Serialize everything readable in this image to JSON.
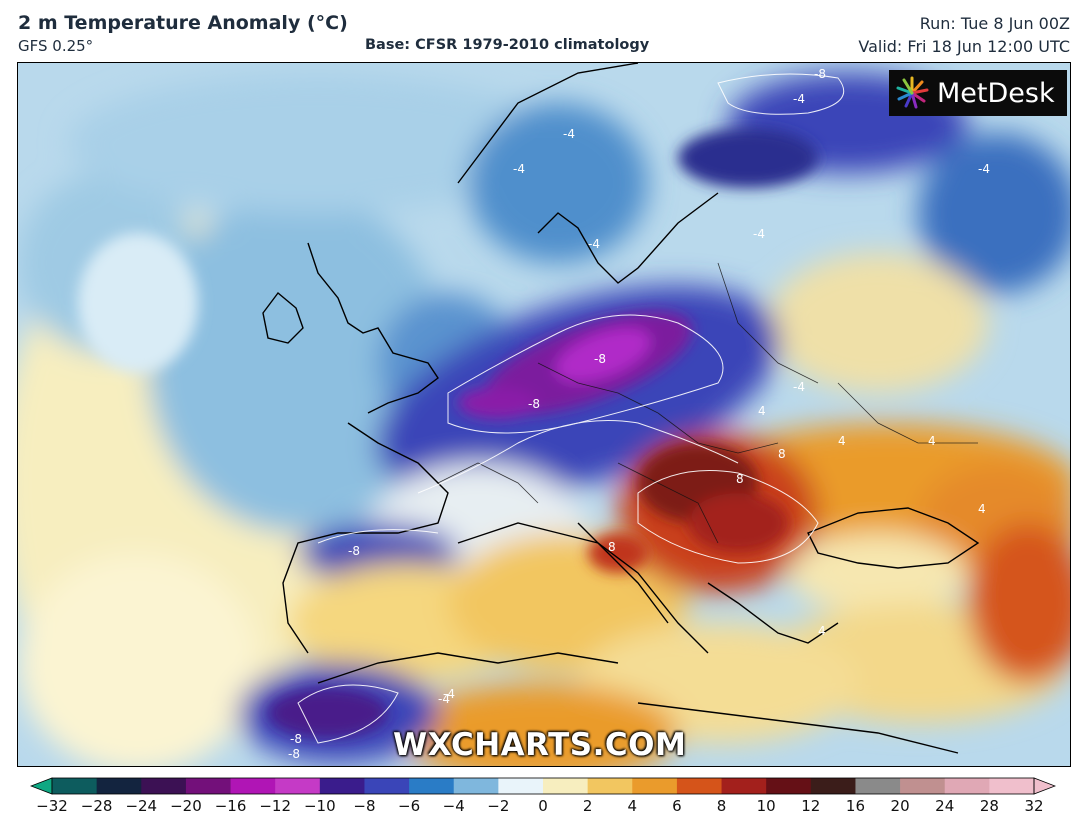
{
  "header": {
    "title": "2 m Temperature Anomaly (°C)",
    "model": "GFS 0.25°",
    "base": "Base: CFSR 1979-2010 climatology",
    "run": "Run: Tue 8 Jun 00Z",
    "valid": "Valid: Fri 18 Jun 12:00 UTC"
  },
  "logo": {
    "text": "MetDesk",
    "icon": "starburst-logo-icon"
  },
  "watermark": "WXCHARTS.COM",
  "map": {
    "contour_labels": [
      "-8",
      "-8",
      "-8",
      "-8",
      "-8",
      "-4",
      "-4",
      "-4",
      "-4",
      "-4",
      "-4",
      "-4",
      "-4",
      "4",
      "4",
      "4",
      "4",
      "4",
      "8",
      "8",
      "8",
      "-8",
      "-4"
    ]
  },
  "colorbar": {
    "ticks": [
      "−32",
      "−28",
      "−24",
      "−20",
      "−16",
      "−12",
      "−10",
      "−8",
      "−6",
      "−4",
      "−2",
      "0",
      "2",
      "4",
      "6",
      "8",
      "10",
      "12",
      "16",
      "20",
      "24",
      "28",
      "32"
    ],
    "colors": [
      "#0fa883",
      "#0d5c5e",
      "#13243f",
      "#3c1154",
      "#73107a",
      "#b015b5",
      "#c53ac6",
      "#3a1c8c",
      "#3a45b8",
      "#2a7cc6",
      "#7fb7dd",
      "#e9f4fa",
      "#f7eebf",
      "#f2c660",
      "#ea9b2c",
      "#d5541a",
      "#a3201c",
      "#651016",
      "#3b1d1a",
      "#8a8a8a",
      "#c09090",
      "#e0a8b5",
      "#f0bfcc"
    ]
  }
}
